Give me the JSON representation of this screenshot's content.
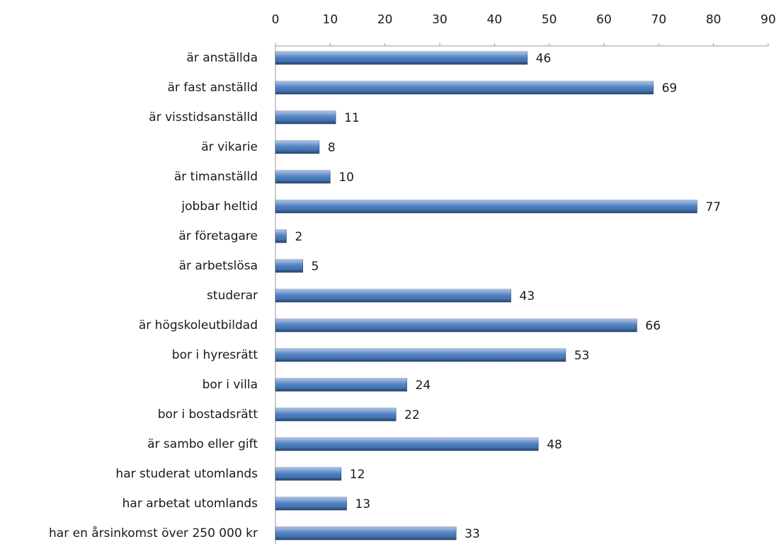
{
  "chart_data": {
    "type": "bar",
    "orientation": "horizontal",
    "color": "#4a7ec4",
    "categories": [
      "är anställda",
      "är fast anställd",
      "är visstidsanställd",
      "är vikarie",
      "är timanställd",
      "jobbar heltid",
      "är företagare",
      "är arbetslösa",
      "studerar",
      "är högskoleutbildad",
      "bor i hyresrätt",
      "bor i villa",
      "bor i bostadsrätt",
      "är sambo eller gift",
      "har studerat utomlands",
      "har arbetat utomlands",
      "har en årsinkomst över 250 000 kr"
    ],
    "values": [
      46,
      69,
      11,
      8,
      10,
      77,
      2,
      5,
      43,
      66,
      53,
      24,
      22,
      48,
      12,
      13,
      33
    ],
    "xlim": [
      0,
      90
    ],
    "xticks": [
      0,
      10,
      20,
      30,
      40,
      50,
      60,
      70,
      80,
      90
    ],
    "grid": false
  }
}
